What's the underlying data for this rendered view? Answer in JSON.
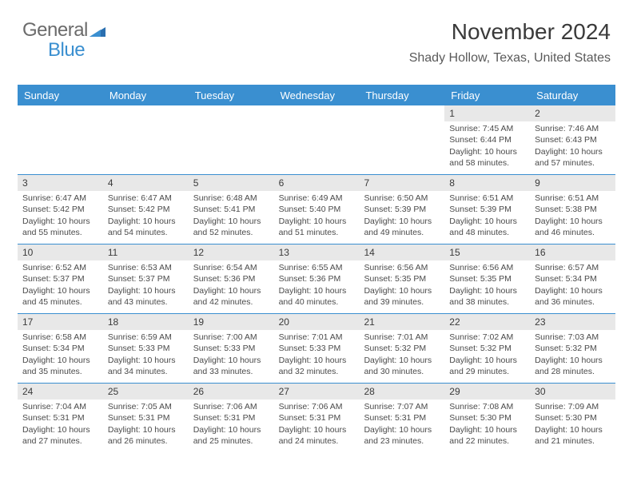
{
  "logo": {
    "part1": "General",
    "part2": "Blue"
  },
  "title": "November 2024",
  "location": "Shady Hollow, Texas, United States",
  "colors": {
    "accent": "#3a8fd0",
    "header_text": "#ffffff",
    "daynum_bg": "#e8e8e8",
    "body_text": "#4a4a4a",
    "title_text": "#3a3a3a",
    "border": "#3a8fd0"
  },
  "weekdays": [
    "Sunday",
    "Monday",
    "Tuesday",
    "Wednesday",
    "Thursday",
    "Friday",
    "Saturday"
  ],
  "weeks": [
    [
      {
        "n": "",
        "empty": true
      },
      {
        "n": "",
        "empty": true
      },
      {
        "n": "",
        "empty": true
      },
      {
        "n": "",
        "empty": true
      },
      {
        "n": "",
        "empty": true
      },
      {
        "n": "1",
        "sr": "Sunrise: 7:45 AM",
        "ss": "Sunset: 6:44 PM",
        "dl": "Daylight: 10 hours and 58 minutes."
      },
      {
        "n": "2",
        "sr": "Sunrise: 7:46 AM",
        "ss": "Sunset: 6:43 PM",
        "dl": "Daylight: 10 hours and 57 minutes."
      }
    ],
    [
      {
        "n": "3",
        "sr": "Sunrise: 6:47 AM",
        "ss": "Sunset: 5:42 PM",
        "dl": "Daylight: 10 hours and 55 minutes."
      },
      {
        "n": "4",
        "sr": "Sunrise: 6:47 AM",
        "ss": "Sunset: 5:42 PM",
        "dl": "Daylight: 10 hours and 54 minutes."
      },
      {
        "n": "5",
        "sr": "Sunrise: 6:48 AM",
        "ss": "Sunset: 5:41 PM",
        "dl": "Daylight: 10 hours and 52 minutes."
      },
      {
        "n": "6",
        "sr": "Sunrise: 6:49 AM",
        "ss": "Sunset: 5:40 PM",
        "dl": "Daylight: 10 hours and 51 minutes."
      },
      {
        "n": "7",
        "sr": "Sunrise: 6:50 AM",
        "ss": "Sunset: 5:39 PM",
        "dl": "Daylight: 10 hours and 49 minutes."
      },
      {
        "n": "8",
        "sr": "Sunrise: 6:51 AM",
        "ss": "Sunset: 5:39 PM",
        "dl": "Daylight: 10 hours and 48 minutes."
      },
      {
        "n": "9",
        "sr": "Sunrise: 6:51 AM",
        "ss": "Sunset: 5:38 PM",
        "dl": "Daylight: 10 hours and 46 minutes."
      }
    ],
    [
      {
        "n": "10",
        "sr": "Sunrise: 6:52 AM",
        "ss": "Sunset: 5:37 PM",
        "dl": "Daylight: 10 hours and 45 minutes."
      },
      {
        "n": "11",
        "sr": "Sunrise: 6:53 AM",
        "ss": "Sunset: 5:37 PM",
        "dl": "Daylight: 10 hours and 43 minutes."
      },
      {
        "n": "12",
        "sr": "Sunrise: 6:54 AM",
        "ss": "Sunset: 5:36 PM",
        "dl": "Daylight: 10 hours and 42 minutes."
      },
      {
        "n": "13",
        "sr": "Sunrise: 6:55 AM",
        "ss": "Sunset: 5:36 PM",
        "dl": "Daylight: 10 hours and 40 minutes."
      },
      {
        "n": "14",
        "sr": "Sunrise: 6:56 AM",
        "ss": "Sunset: 5:35 PM",
        "dl": "Daylight: 10 hours and 39 minutes."
      },
      {
        "n": "15",
        "sr": "Sunrise: 6:56 AM",
        "ss": "Sunset: 5:35 PM",
        "dl": "Daylight: 10 hours and 38 minutes."
      },
      {
        "n": "16",
        "sr": "Sunrise: 6:57 AM",
        "ss": "Sunset: 5:34 PM",
        "dl": "Daylight: 10 hours and 36 minutes."
      }
    ],
    [
      {
        "n": "17",
        "sr": "Sunrise: 6:58 AM",
        "ss": "Sunset: 5:34 PM",
        "dl": "Daylight: 10 hours and 35 minutes."
      },
      {
        "n": "18",
        "sr": "Sunrise: 6:59 AM",
        "ss": "Sunset: 5:33 PM",
        "dl": "Daylight: 10 hours and 34 minutes."
      },
      {
        "n": "19",
        "sr": "Sunrise: 7:00 AM",
        "ss": "Sunset: 5:33 PM",
        "dl": "Daylight: 10 hours and 33 minutes."
      },
      {
        "n": "20",
        "sr": "Sunrise: 7:01 AM",
        "ss": "Sunset: 5:33 PM",
        "dl": "Daylight: 10 hours and 32 minutes."
      },
      {
        "n": "21",
        "sr": "Sunrise: 7:01 AM",
        "ss": "Sunset: 5:32 PM",
        "dl": "Daylight: 10 hours and 30 minutes."
      },
      {
        "n": "22",
        "sr": "Sunrise: 7:02 AM",
        "ss": "Sunset: 5:32 PM",
        "dl": "Daylight: 10 hours and 29 minutes."
      },
      {
        "n": "23",
        "sr": "Sunrise: 7:03 AM",
        "ss": "Sunset: 5:32 PM",
        "dl": "Daylight: 10 hours and 28 minutes."
      }
    ],
    [
      {
        "n": "24",
        "sr": "Sunrise: 7:04 AM",
        "ss": "Sunset: 5:31 PM",
        "dl": "Daylight: 10 hours and 27 minutes."
      },
      {
        "n": "25",
        "sr": "Sunrise: 7:05 AM",
        "ss": "Sunset: 5:31 PM",
        "dl": "Daylight: 10 hours and 26 minutes."
      },
      {
        "n": "26",
        "sr": "Sunrise: 7:06 AM",
        "ss": "Sunset: 5:31 PM",
        "dl": "Daylight: 10 hours and 25 minutes."
      },
      {
        "n": "27",
        "sr": "Sunrise: 7:06 AM",
        "ss": "Sunset: 5:31 PM",
        "dl": "Daylight: 10 hours and 24 minutes."
      },
      {
        "n": "28",
        "sr": "Sunrise: 7:07 AM",
        "ss": "Sunset: 5:31 PM",
        "dl": "Daylight: 10 hours and 23 minutes."
      },
      {
        "n": "29",
        "sr": "Sunrise: 7:08 AM",
        "ss": "Sunset: 5:30 PM",
        "dl": "Daylight: 10 hours and 22 minutes."
      },
      {
        "n": "30",
        "sr": "Sunrise: 7:09 AM",
        "ss": "Sunset: 5:30 PM",
        "dl": "Daylight: 10 hours and 21 minutes."
      }
    ]
  ]
}
